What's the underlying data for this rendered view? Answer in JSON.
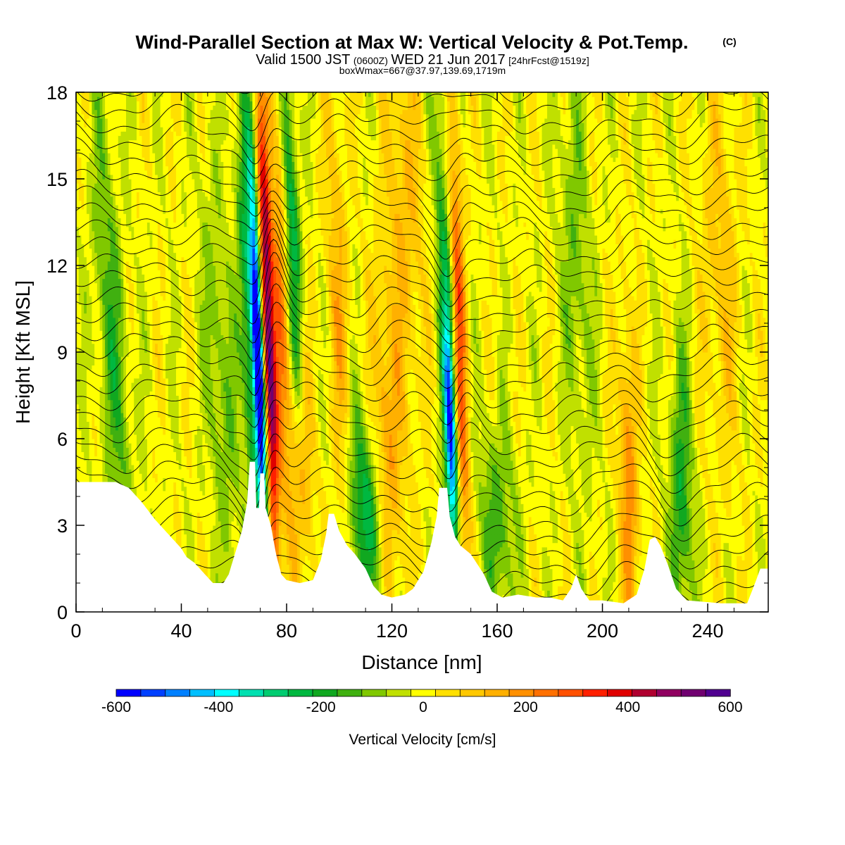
{
  "header": {
    "title": "Wind-Parallel Section at Max W: Vertical Velocity & Pot.Temp.",
    "title_mark": "(C)",
    "valid_prefix": "Valid 1500 JST",
    "valid_zulu": "(0600Z)",
    "valid_date": "WED 21 Jun 2017",
    "forecast": "[24hrFcst@1519z]",
    "box_info": "boxWmax=667@37.97,139.69,1719m"
  },
  "chart_data": {
    "type": "heatmap",
    "xlabel": "Distance [nm]",
    "ylabel": "Height [Kft MSL]",
    "xlim": [
      0,
      263
    ],
    "ylim": [
      0,
      18
    ],
    "x_ticks": [
      "0",
      "40",
      "80",
      "120",
      "160",
      "200",
      "240"
    ],
    "y_ticks": [
      "0",
      "3",
      "6",
      "9",
      "12",
      "15",
      "18"
    ],
    "x_tick_values": [
      0,
      40,
      80,
      120,
      160,
      200,
      240
    ],
    "y_tick_values": [
      0,
      3,
      6,
      9,
      12,
      15,
      18
    ],
    "colorbar": {
      "label": "Vertical Velocity [cm/s]",
      "ticks": [
        "-600",
        "-400",
        "-200",
        "0",
        "200",
        "400",
        "600"
      ],
      "tick_values": [
        -600,
        -400,
        -200,
        0,
        200,
        400,
        600
      ],
      "range": [
        -600,
        600
      ],
      "colors": [
        "#0000ff",
        "#0040ff",
        "#0080ff",
        "#00bfff",
        "#00ffff",
        "#00e0b0",
        "#00cc70",
        "#00b840",
        "#10a820",
        "#40b010",
        "#80c800",
        "#c0e000",
        "#ffff00",
        "#ffe000",
        "#ffc800",
        "#ffb000",
        "#ff9000",
        "#ff7000",
        "#ff5000",
        "#ff2000",
        "#e00000",
        "#b00030",
        "#900060",
        "#700070",
        "#500090"
      ]
    },
    "terrain_kft": [
      [
        0,
        4.5
      ],
      [
        7,
        4.5
      ],
      [
        14,
        4.5
      ],
      [
        15,
        4.5
      ],
      [
        20,
        4.3
      ],
      [
        25,
        3.8
      ],
      [
        30,
        3.2
      ],
      [
        35,
        2.7
      ],
      [
        40,
        2.2
      ],
      [
        42,
        1.9
      ],
      [
        45,
        1.7
      ],
      [
        48,
        1.4
      ],
      [
        52,
        1.0
      ],
      [
        56,
        1.0
      ],
      [
        58,
        1.3
      ],
      [
        60,
        1.9
      ],
      [
        63,
        2.8
      ],
      [
        65,
        3.8
      ],
      [
        66,
        5.2
      ],
      [
        68,
        5.2
      ],
      [
        68.5,
        3.6
      ],
      [
        69.5,
        3.6
      ],
      [
        70,
        4.8
      ],
      [
        71.5,
        4.8
      ],
      [
        72,
        3.6
      ],
      [
        74,
        3.0
      ],
      [
        76,
        2.0
      ],
      [
        78,
        1.3
      ],
      [
        80,
        1.1
      ],
      [
        85,
        1.0
      ],
      [
        90,
        1.1
      ],
      [
        93,
        1.8
      ],
      [
        95,
        2.7
      ],
      [
        96,
        3.4
      ],
      [
        98,
        3.4
      ],
      [
        100,
        2.8
      ],
      [
        103,
        2.3
      ],
      [
        106,
        2.0
      ],
      [
        110,
        1.5
      ],
      [
        113,
        0.9
      ],
      [
        116,
        0.6
      ],
      [
        120,
        0.5
      ],
      [
        125,
        0.6
      ],
      [
        128,
        0.8
      ],
      [
        132,
        1.4
      ],
      [
        135,
        2.4
      ],
      [
        137,
        3.3
      ],
      [
        138,
        4.3
      ],
      [
        141,
        4.3
      ],
      [
        142,
        3.3
      ],
      [
        144,
        2.6
      ],
      [
        146,
        2.3
      ],
      [
        150,
        2.0
      ],
      [
        155,
        1.3
      ],
      [
        158,
        0.7
      ],
      [
        162,
        0.5
      ],
      [
        168,
        0.6
      ],
      [
        175,
        0.5
      ],
      [
        180,
        0.5
      ],
      [
        185,
        0.4
      ],
      [
        188,
        0.8
      ],
      [
        190,
        1.3
      ],
      [
        192,
        0.8
      ],
      [
        195,
        0.4
      ],
      [
        200,
        0.4
      ],
      [
        208,
        0.3
      ],
      [
        213,
        0.6
      ],
      [
        216,
        1.5
      ],
      [
        218,
        2.5
      ],
      [
        220,
        2.6
      ],
      [
        222,
        2.3
      ],
      [
        225,
        1.6
      ],
      [
        228,
        0.8
      ],
      [
        232,
        0.4
      ],
      [
        245,
        0.3
      ],
      [
        255,
        0.3
      ],
      [
        258,
        1.0
      ],
      [
        260,
        1.5
      ],
      [
        263,
        1.5
      ]
    ],
    "updrafts": [
      {
        "x": 73,
        "z": 9.5,
        "sx": 1.8,
        "sz": 5.5,
        "amp": 560,
        "tilt": -0.35
      },
      {
        "x": 69.5,
        "z": 8.5,
        "sx": 1.4,
        "sz": 4.5,
        "amp": -650,
        "tilt": -0.4
      },
      {
        "x": 66,
        "z": 10,
        "sx": 2.5,
        "sz": 6,
        "amp": -260,
        "tilt": -0.4
      },
      {
        "x": 78,
        "z": 11,
        "sx": 2.5,
        "sz": 6,
        "amp": 200,
        "tilt": -0.3
      },
      {
        "x": 82,
        "z": 13,
        "sx": 2.2,
        "sz": 5,
        "amp": -260,
        "tilt": -0.4
      },
      {
        "x": 86,
        "z": 5,
        "sx": 3,
        "sz": 3,
        "amp": 160,
        "tilt": -0.2
      },
      {
        "x": 110,
        "z": 3.5,
        "sx": 5,
        "sz": 2.5,
        "amp": -250,
        "tilt": -0.5
      },
      {
        "x": 118,
        "z": 5.5,
        "sx": 4,
        "sz": 4,
        "amp": 180,
        "tilt": -0.3
      },
      {
        "x": 142.5,
        "z": 6,
        "sx": 1.6,
        "sz": 3,
        "amp": -500,
        "tilt": -0.3
      },
      {
        "x": 145.5,
        "z": 9.5,
        "sx": 2,
        "sz": 6,
        "amp": 300,
        "tilt": -0.3
      },
      {
        "x": 140,
        "z": 12,
        "sx": 2.5,
        "sz": 5,
        "amp": -180,
        "tilt": -0.3
      },
      {
        "x": 160,
        "z": 3,
        "sx": 5,
        "sz": 2.5,
        "amp": -150,
        "tilt": -0.3
      },
      {
        "x": 210,
        "z": 4.5,
        "sx": 2.5,
        "sz": 4,
        "amp": 200,
        "tilt": -0.2
      },
      {
        "x": 230,
        "z": 4,
        "sx": 3,
        "sz": 3.5,
        "amp": -200,
        "tilt": -0.1
      },
      {
        "x": 14,
        "z": 9,
        "sx": 4,
        "sz": 6,
        "amp": -150,
        "tilt": -0.6
      },
      {
        "x": 55,
        "z": 8,
        "sx": 4,
        "sz": 5,
        "amp": -120,
        "tilt": -0.6
      },
      {
        "x": 100,
        "z": 10,
        "sx": 3,
        "sz": 6,
        "amp": 130,
        "tilt": -0.3
      },
      {
        "x": 125,
        "z": 14,
        "sx": 5,
        "sz": 5,
        "amp": 120,
        "tilt": -0.3
      },
      {
        "x": 190,
        "z": 12,
        "sx": 4,
        "sz": 5,
        "amp": -110,
        "tilt": -0.3
      },
      {
        "x": 245,
        "z": 12,
        "sx": 5,
        "sz": 5,
        "amp": 100,
        "tilt": -0.2
      }
    ]
  }
}
